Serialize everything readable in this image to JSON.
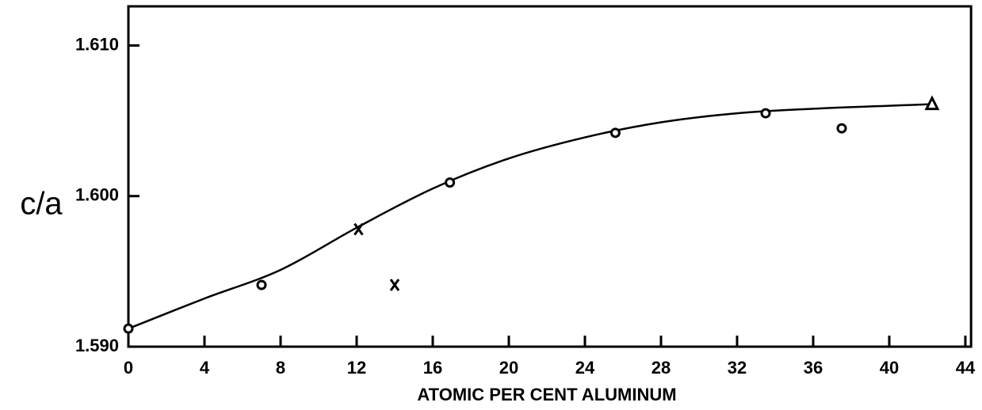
{
  "chart_data": {
    "type": "scatter",
    "xlabel": "ATOMIC PER CENT ALUMINUM",
    "ylabel": "c/a",
    "xlim": [
      0,
      44.3
    ],
    "ylim": [
      1.59,
      1.6126
    ],
    "xticks": [
      0,
      4,
      8,
      12,
      16,
      20,
      24,
      28,
      32,
      36,
      40,
      44
    ],
    "yticks": [
      {
        "value": 1.59,
        "label": "1.590"
      },
      {
        "value": 1.6,
        "label": "1.600"
      },
      {
        "value": 1.61,
        "label": "1.610"
      }
    ],
    "color": "#000000",
    "series": [
      {
        "marker": "line",
        "x": [
          0,
          4,
          8,
          12,
          16,
          20,
          24,
          28,
          32,
          36,
          40,
          42.2
        ],
        "values": [
          1.5912,
          1.5932,
          1.5951,
          1.5979,
          1.6005,
          1.6025,
          1.6039,
          1.6049,
          1.6055,
          1.6058,
          1.606,
          1.6061
        ]
      },
      {
        "marker": "circle",
        "x": [
          0,
          7,
          16.9,
          25.6,
          33.5,
          37.5
        ],
        "values": [
          1.5912,
          1.5941,
          1.6009,
          1.6042,
          1.6055,
          1.6045
        ]
      },
      {
        "marker": "x",
        "x": [
          12.1,
          14.0
        ],
        "values": [
          1.5978,
          1.5941
        ]
      },
      {
        "marker": "triangle",
        "x": [
          42.25
        ],
        "values": [
          1.6061
        ]
      }
    ]
  }
}
